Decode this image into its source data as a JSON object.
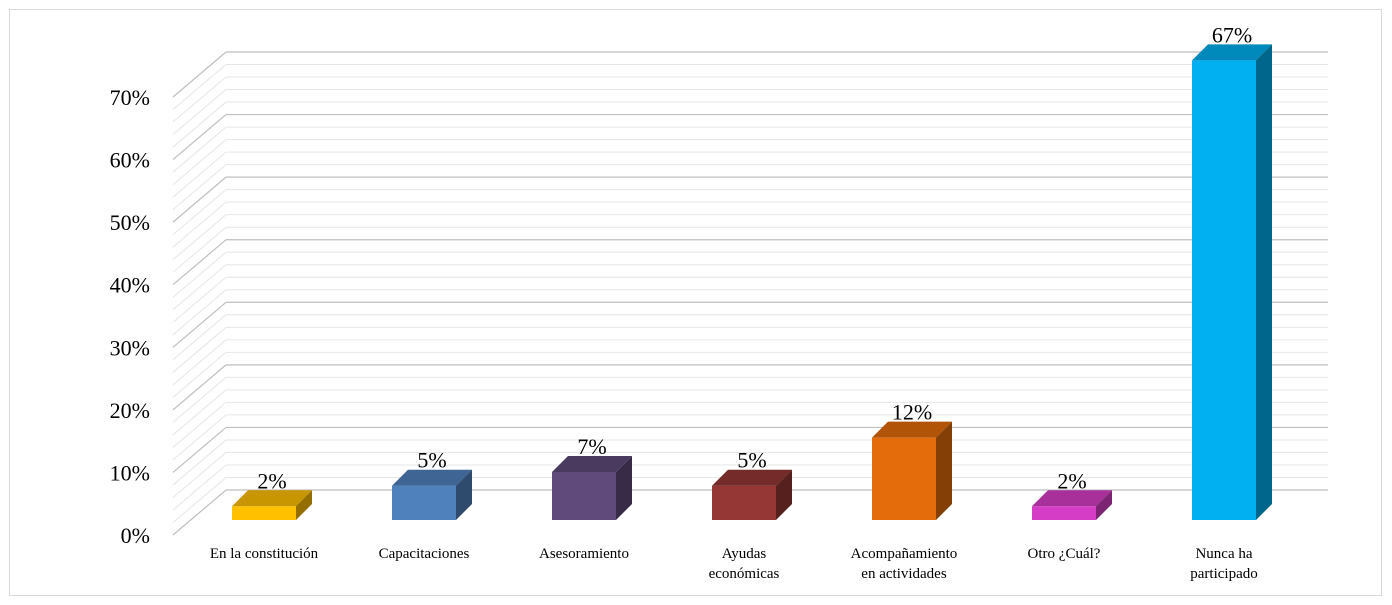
{
  "chart_data": {
    "type": "bar",
    "title": "",
    "xlabel": "",
    "ylabel": "",
    "ylim": [
      0,
      70
    ],
    "grid": true,
    "legend": "none",
    "y_ticks": [
      "0%",
      "10%",
      "20%",
      "30%",
      "40%",
      "50%",
      "60%",
      "70%"
    ],
    "categories": [
      [
        "En la constitución"
      ],
      [
        "Capacitaciones"
      ],
      [
        "Asesoramiento"
      ],
      [
        "Ayudas",
        "económicas"
      ],
      [
        "Acompañamiento",
        "en actividades"
      ],
      [
        "Otro ¿Cuál?"
      ],
      [
        "Nunca ha",
        "participado"
      ]
    ],
    "values": [
      2,
      5,
      7,
      5,
      12,
      2,
      67
    ],
    "data_labels": [
      "2%",
      "5%",
      "7%",
      "5%",
      "12%",
      "2%",
      "67%"
    ],
    "colors": [
      "#FFC000",
      "#4F81BD",
      "#604A7B",
      "#953735",
      "#E46C0A",
      "#D63DC6",
      "#00B0F0"
    ]
  }
}
